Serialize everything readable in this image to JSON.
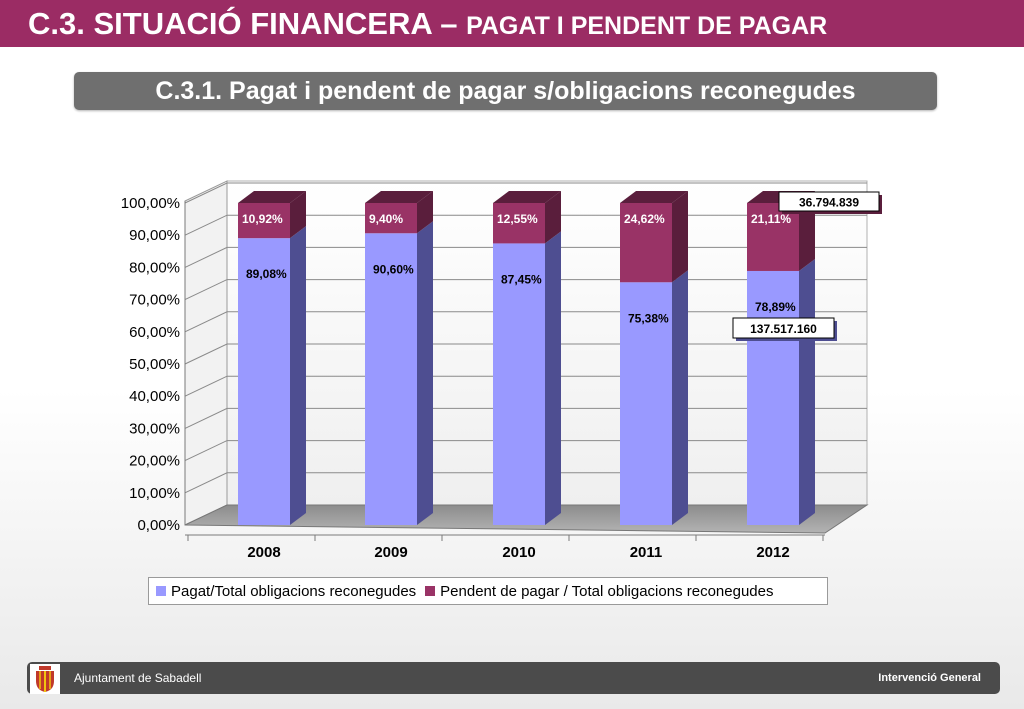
{
  "header": {
    "title_main": "C.3. SITUACIÓ FINANCERA – ",
    "title_sub": "PAGAT I PENDENT DE PAGAR"
  },
  "subtitle": "C.3.1. Pagat i pendent de pagar s/obligacions reconegudes",
  "chart_data": {
    "type": "bar",
    "stacked": true,
    "three_d": true,
    "categories": [
      "2008",
      "2009",
      "2010",
      "2011",
      "2012"
    ],
    "series": [
      {
        "name": "Pagat/Total obligacions reconegudes",
        "values": [
          89.08,
          90.6,
          87.45,
          75.38,
          78.89
        ],
        "labels": [
          "89,08%",
          "90,60%",
          "87,45%",
          "75,38%",
          "78,89%"
        ],
        "color": "#9999ff",
        "side_color": "#4e4e91",
        "label_color": "#000000"
      },
      {
        "name": "Pendent de pagar / Total obligacions reconegudes",
        "values": [
          10.92,
          9.4,
          12.55,
          24.62,
          21.11
        ],
        "labels": [
          "10,92%",
          "9,40%",
          "12,55%",
          "24,62%",
          "21,11%"
        ],
        "color": "#993366",
        "side_color": "#5a1e3c",
        "label_color": "#ffffff"
      }
    ],
    "y_ticks": [
      "0,00%",
      "10,00%",
      "20,00%",
      "30,00%",
      "40,00%",
      "50,00%",
      "60,00%",
      "70,00%",
      "80,00%",
      "90,00%",
      "100,00%"
    ],
    "ylim": [
      0,
      100
    ],
    "grid": true,
    "legend_position": "bottom",
    "callouts": [
      {
        "text": "36.794.839",
        "category": "2012",
        "series": "Pendent de pagar / Total obligacions reconegudes"
      },
      {
        "text": "137.517.160",
        "category": "2012",
        "series": "Pagat/Total obligacions reconegudes"
      }
    ]
  },
  "footer": {
    "left": "Ajuntament de Sabadell",
    "right": "Intervenció General"
  },
  "icons": {
    "logo": "sabadell-coat-of-arms-icon"
  }
}
